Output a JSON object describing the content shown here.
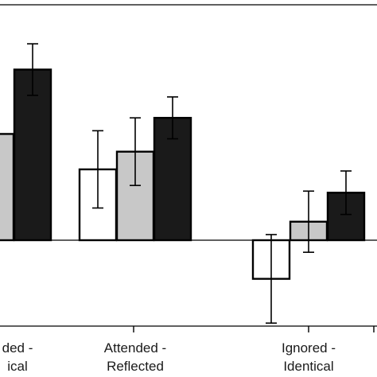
{
  "chart_data": {
    "type": "bar",
    "categories": [
      [
        "ded -",
        "ical"
      ],
      [
        "Attended -",
        "Reflected"
      ],
      [
        "Ignored -",
        "Identical"
      ]
    ],
    "series": [
      {
        "color": "#ffffff",
        "values": [
          null,
          0.88,
          -0.48
        ],
        "error": [
          null,
          0.48,
          0.55
        ]
      },
      {
        "color": "#c8c8c8",
        "values": [
          1.32,
          1.1,
          0.23
        ],
        "error": [
          null,
          0.42,
          0.38
        ]
      },
      {
        "color": "#1a1a1a",
        "values": [
          2.12,
          1.52,
          0.59
        ],
        "error": [
          0.32,
          0.26,
          0.27
        ]
      }
    ],
    "ylim": [
      -1.05,
      2.9
    ],
    "grid": false,
    "legend": "none"
  }
}
